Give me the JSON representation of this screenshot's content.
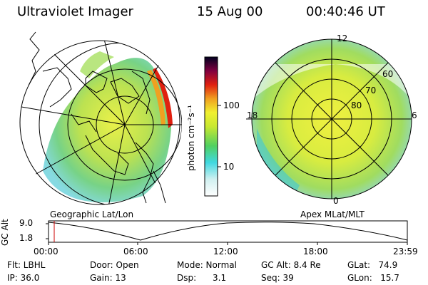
{
  "header": {
    "instrument": "Ultraviolet Imager",
    "date": "15 Aug 00",
    "time": "00:40:46 UT"
  },
  "colorbar": {
    "unit_label": "photon cm⁻²s⁻¹",
    "ticks": [
      "100",
      "10"
    ]
  },
  "panels": {
    "left_caption": "Geographic Lat/Lon",
    "right_caption": "Apex MLat/MLT",
    "polar_labels": {
      "mlt_12": "12",
      "mlt_18": "18",
      "mlt_6": "6",
      "mlt_0": "0",
      "lat_60": "60",
      "lat_70": "70",
      "lat_80": "80"
    }
  },
  "altitude_plot": {
    "ylabel": "GC Alt",
    "yticks": [
      "9.0",
      "1.8"
    ],
    "xticks": [
      "00:00",
      "06:00",
      "12:00",
      "18:00",
      "23:59"
    ]
  },
  "info": {
    "filter": "Flt: LBHL",
    "ip": "IP: 36.0",
    "door": "Door: Open",
    "gain": "Gain: 13",
    "mode": "Mode: Normal",
    "dsp": "Dsp:      3.1",
    "gc_alt": "GC Alt: 8.4 Re",
    "seq": "Seq: 39",
    "glat": "GLat:   74.9",
    "glon": "GLon:   15.7"
  },
  "colors": {
    "accent_red": "#d00000",
    "cursor_red": "#cc0000"
  }
}
